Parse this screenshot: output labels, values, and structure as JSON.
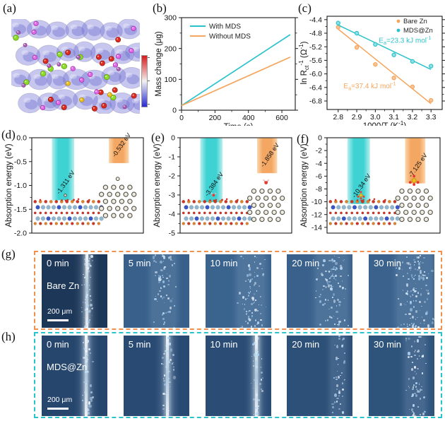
{
  "labels": {
    "a": "(a)",
    "b": "(b)",
    "c": "(c)",
    "d": "(d)",
    "e": "(e)",
    "f": "(f)",
    "g": "(g)",
    "h": "(h)"
  },
  "colors": {
    "cyan": "#2cc2cc",
    "orange": "#f5a55e",
    "bar_cyan": "#3fd2d3",
    "bar_orange": "#f4a763",
    "border_g": "#f0924e",
    "border_h": "#27c5c9",
    "axis": "#1a1a1a",
    "colorbar_top": "#d7191c",
    "colorbar_middle": "#f2f2f2",
    "colorbar_bottom": "#2929d4"
  },
  "panel_a": {
    "description": "charge-density isosurface model with atoms and color scale"
  },
  "chart_data": [
    {
      "panel": "b",
      "type": "line",
      "xlabel": "Time (s)",
      "ylabel": "Mass change (μg)",
      "xlim": [
        0,
        680
      ],
      "ylim": [
        0,
        300
      ],
      "xticks": [
        0,
        200,
        400,
        600
      ],
      "xtick_labels": [
        "0",
        "200",
        "400",
        "600"
      ],
      "yticks": [
        300,
        200,
        100,
        0
      ],
      "ytick_labels": [
        "300",
        "200",
        "100",
        "0"
      ],
      "legend_position": "top-left",
      "series": [
        {
          "name": "With MDS",
          "color": "#2cc2cc",
          "points": [
            [
              0,
              15
            ],
            [
              650,
              245
            ]
          ]
        },
        {
          "name": "Without MDS",
          "color": "#f5a55e",
          "points": [
            [
              0,
              15
            ],
            [
              650,
              172
            ]
          ]
        }
      ]
    },
    {
      "panel": "c",
      "type": "scatter",
      "xlabel": "1000/T (K^{-1})",
      "ylabel": "ln R_{ct}^{-1} (Ω^{-1})",
      "xlim": [
        2.74,
        3.36
      ],
      "ylim": [
        -7.05,
        -4.3
      ],
      "xticks": [
        2.8,
        2.9,
        3.0,
        3.1,
        3.2,
        3.3
      ],
      "xtick_labels": [
        "2.8",
        "2.9",
        "3.0",
        "3.1",
        "3.2",
        "3.3"
      ],
      "yticks": [
        -4.4,
        -4.8,
        -5.2,
        -5.6,
        -6.0,
        -6.4,
        -6.8
      ],
      "ytick_labels": [
        "-4.4",
        "-4.8",
        "-5.2",
        "-5.6",
        "-6.0",
        "-6.4",
        "-6.8"
      ],
      "legend_position": "top-right",
      "series": [
        {
          "name": "Bare Zn",
          "color": "#f5a55e",
          "fill": "#f8c493",
          "points": [
            [
              2.8,
              -4.62
            ],
            [
              2.9,
              -5.22
            ],
            [
              3.0,
              -5.72
            ],
            [
              3.1,
              -6.12
            ],
            [
              3.2,
              -6.38
            ],
            [
              3.3,
              -6.78
            ]
          ],
          "fit": [
            [
              2.8,
              -4.68
            ],
            [
              3.3,
              -6.88
            ]
          ],
          "annotation": {
            "text": "E_{a}=37.4 kJ mol^{-1}",
            "x": 2.97,
            "y": -6.42
          }
        },
        {
          "name": "MDS@Zn",
          "color": "#2cc2cc",
          "fill": "#8fe0e4",
          "points": [
            [
              2.8,
              -4.5
            ],
            [
              2.9,
              -4.8
            ],
            [
              3.0,
              -5.13
            ],
            [
              3.1,
              -5.44
            ],
            [
              3.2,
              -5.63
            ],
            [
              3.3,
              -5.77
            ]
          ],
          "fit": [
            [
              2.8,
              -4.56
            ],
            [
              3.3,
              -5.87
            ]
          ],
          "annotation": {
            "text": "E_{a}=23.3 kJ mol^{-1}",
            "x": 3.16,
            "y": -5.08
          }
        }
      ]
    },
    {
      "panel": "d",
      "type": "bar",
      "ylabel": "Absorption energy (eV)",
      "ylim": [
        -2.0,
        0
      ],
      "yticks": [
        0,
        -0.5,
        -1.0,
        -1.5,
        -2.0
      ],
      "ytick_labels": [
        "0.0",
        "-0.5",
        "-1.0",
        "-1.5",
        "-2.0"
      ],
      "bars": [
        {
          "label": "-1.311 eV",
          "value": -1.311,
          "color_key": "cyan",
          "center": 0.28,
          "width": 0.2
        },
        {
          "label": "-0.532 eV",
          "value": -0.532,
          "color_key": "orange",
          "center": 0.78,
          "width": 0.18
        }
      ],
      "insets": {
        "left": "mds-slab",
        "right": "zn-slab",
        "adsorbate": "zn-atom"
      }
    },
    {
      "panel": "e",
      "type": "bar",
      "ylabel": "Absorption energy (eV)",
      "ylim": [
        -5,
        0
      ],
      "yticks": [
        0,
        -1,
        -2,
        -3,
        -4,
        -5
      ],
      "ytick_labels": [
        "0",
        "-1",
        "-2",
        "-3",
        "-4",
        "-5"
      ],
      "bars": [
        {
          "label": "-3.384 eV",
          "value": -3.384,
          "color_key": "cyan",
          "center": 0.28,
          "width": 0.2
        },
        {
          "label": "-1.858 eV",
          "value": -1.858,
          "color_key": "orange",
          "center": 0.78,
          "width": 0.18
        }
      ],
      "insets": {
        "left": "mds-slab",
        "right": "zn-slab",
        "adsorbate": "h2o"
      }
    },
    {
      "panel": "f",
      "type": "bar",
      "ylabel": "Absorption energy (eV)",
      "ylim": [
        -14.9,
        0
      ],
      "yticks": [
        0,
        -2,
        -4,
        -6,
        -8,
        -10,
        -12,
        -14
      ],
      "ytick_labels": [
        "0",
        "-2",
        "-4",
        "-6",
        "-8",
        "-10",
        "-12",
        "-14"
      ],
      "bars": [
        {
          "label": "-10.34 eV",
          "value": -10.34,
          "color_key": "cyan",
          "center": 0.28,
          "width": 0.2
        },
        {
          "label": "-7.125 eV",
          "value": -7.125,
          "color_key": "orange",
          "center": 0.78,
          "width": 0.18
        }
      ],
      "insets": {
        "left": "mds-slab",
        "right": "zn-slab",
        "adsorbate": "so4"
      }
    }
  ],
  "microscopy": {
    "g": {
      "sample": "Bare Zn",
      "scale_label": "200 μm",
      "times": [
        "0 min",
        "5 min",
        "10 min",
        "20 min",
        "30 min"
      ]
    },
    "h": {
      "sample": "MDS@Zn",
      "scale_label": "200 μm",
      "times": [
        "0 min",
        "5 min",
        "10 min",
        "20 min",
        "30 min"
      ]
    }
  }
}
